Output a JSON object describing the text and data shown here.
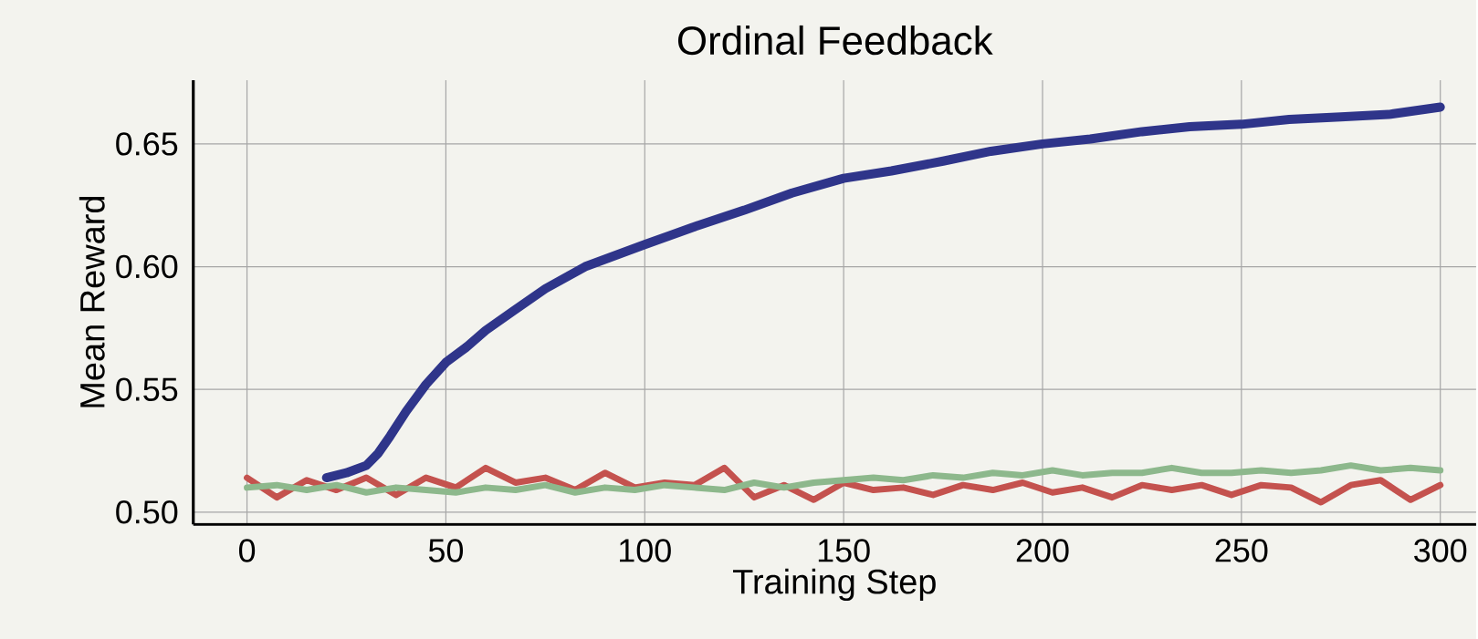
{
  "chart_data": {
    "type": "line",
    "title": "Ordinal Feedback",
    "xlabel": "Training Step",
    "ylabel": "Mean Reward",
    "xlim": [
      -13.5,
      309
    ],
    "ylim": [
      0.495,
      0.676
    ],
    "xticks": [
      0,
      50,
      100,
      150,
      200,
      250,
      300
    ],
    "yticks": [
      {
        "value": 0.5,
        "label": "0.50"
      },
      {
        "value": 0.55,
        "label": "0.55"
      },
      {
        "value": 0.6,
        "label": "0.60"
      },
      {
        "value": 0.65,
        "label": "0.65"
      }
    ],
    "grid": true,
    "marker": "none",
    "line_style": "solid",
    "series": [
      {
        "color": "#c4524e",
        "x": [
          0,
          7.5,
          15,
          22.5,
          30,
          37.5,
          45,
          52.5,
          60,
          67.5,
          75,
          82.5,
          90,
          97.5,
          105,
          112.5,
          120,
          127.5,
          135,
          142.5,
          150,
          157.5,
          165,
          172.5,
          180,
          187.5,
          195,
          202.5,
          210,
          217.5,
          225,
          232.5,
          240,
          247.5,
          255,
          262.5,
          270,
          277.5,
          285,
          292.5,
          300
        ],
        "values": [
          0.514,
          0.506,
          0.513,
          0.509,
          0.514,
          0.507,
          0.514,
          0.51,
          0.518,
          0.512,
          0.514,
          0.509,
          0.516,
          0.51,
          0.512,
          0.511,
          0.518,
          0.506,
          0.511,
          0.505,
          0.512,
          0.509,
          0.51,
          0.507,
          0.511,
          0.509,
          0.512,
          0.508,
          0.51,
          0.506,
          0.511,
          0.509,
          0.511,
          0.507,
          0.511,
          0.51,
          0.504,
          0.511,
          0.513,
          0.505,
          0.511
        ]
      },
      {
        "color": "#8db88c",
        "x": [
          0,
          7.5,
          15,
          22.5,
          30,
          37.5,
          45,
          52.5,
          60,
          67.5,
          75,
          82.5,
          90,
          97.5,
          105,
          112.5,
          120,
          127.5,
          135,
          142.5,
          150,
          157.5,
          165,
          172.5,
          180,
          187.5,
          195,
          202.5,
          210,
          217.5,
          225,
          232.5,
          240,
          247.5,
          255,
          262.5,
          270,
          277.5,
          285,
          292.5,
          300
        ],
        "values": [
          0.51,
          0.511,
          0.509,
          0.511,
          0.508,
          0.51,
          0.509,
          0.508,
          0.51,
          0.509,
          0.511,
          0.508,
          0.51,
          0.509,
          0.511,
          0.51,
          0.509,
          0.512,
          0.51,
          0.512,
          0.513,
          0.514,
          0.513,
          0.515,
          0.514,
          0.516,
          0.515,
          0.517,
          0.515,
          0.516,
          0.516,
          0.518,
          0.516,
          0.516,
          0.517,
          0.516,
          0.517,
          0.519,
          0.517,
          0.518,
          0.517
        ]
      },
      {
        "color": "#2f358a",
        "x": [
          20,
          25,
          30,
          33,
          36,
          40,
          45,
          50,
          55,
          60,
          67,
          75,
          85,
          100,
          112,
          125,
          137,
          150,
          162,
          175,
          187,
          200,
          212,
          225,
          237,
          250,
          262,
          275,
          287,
          300
        ],
        "values": [
          0.514,
          0.516,
          0.519,
          0.524,
          0.531,
          0.541,
          0.552,
          0.561,
          0.567,
          0.574,
          0.582,
          0.591,
          0.6,
          0.609,
          0.616,
          0.623,
          0.63,
          0.636,
          0.639,
          0.643,
          0.647,
          0.65,
          0.652,
          0.655,
          0.657,
          0.658,
          0.66,
          0.661,
          0.662,
          0.665
        ]
      }
    ]
  }
}
